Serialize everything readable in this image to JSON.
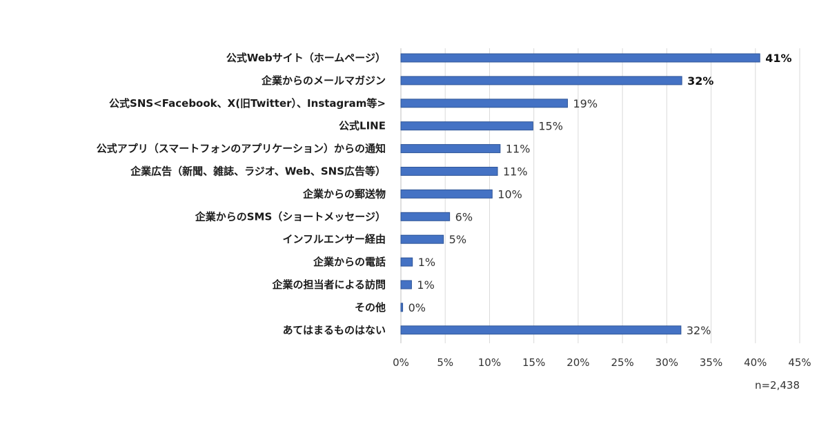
{
  "chart_data": {
    "type": "bar",
    "orientation": "horizontal",
    "categories": [
      "公式Webサイト（ホームページ）",
      "企業からのメールマガジン",
      "公式SNS<Facebook、X(旧Twitter）、Instagram等>",
      "公式LINE",
      "公式アプリ（スマートフォンのアプリケーション）からの通知",
      "企業広告（新聞、雑誌、ラジオ、Web、SNS広告等）",
      "企業からの郵送物",
      "企業からのSMS（ショートメッセージ）",
      "インフルエンサー経由",
      "企業からの電話",
      "企業の担当者による訪問",
      "その他",
      "あてはまるものはない"
    ],
    "values": [
      40.5,
      31.7,
      18.8,
      14.9,
      11.2,
      10.9,
      10.3,
      5.5,
      4.8,
      1.3,
      1.2,
      0.2,
      31.6
    ],
    "value_labels": [
      "41%",
      "32%",
      "19%",
      "15%",
      "11%",
      "11%",
      "10%",
      "6%",
      "5%",
      "1%",
      "1%",
      "0%",
      "32%"
    ],
    "bold_value_labels": [
      true,
      true,
      false,
      false,
      false,
      false,
      false,
      false,
      false,
      false,
      false,
      false,
      false
    ],
    "x_ticks": [
      "0%",
      "5%",
      "10%",
      "15%",
      "20%",
      "25%",
      "30%",
      "35%",
      "40%",
      "45%"
    ],
    "xlim": [
      0,
      45
    ],
    "grid": true,
    "bar_color": "#4472C4",
    "bar_edge_color": "#2F5597",
    "grid_color": "#D9D9D9",
    "note": "n=2,438"
  }
}
